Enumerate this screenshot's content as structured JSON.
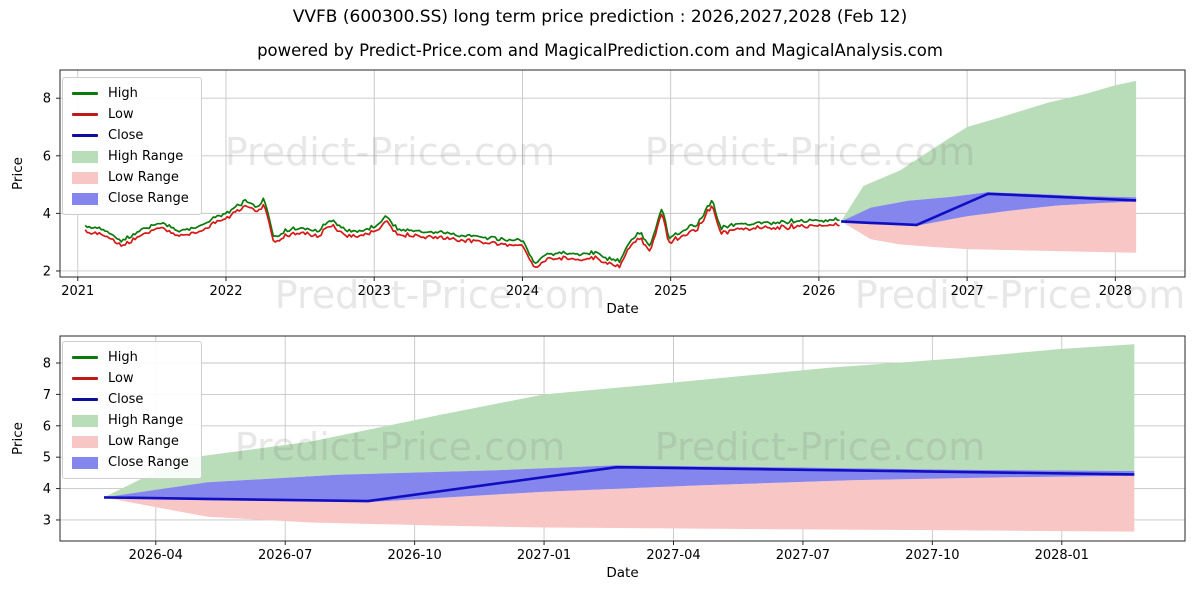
{
  "figure": {
    "title": "VVFB (600300.SS) long term price prediction : 2026,2027,2028 (Feb 12)",
    "subtitle": "powered by Predict-Price.com and MagicalPrediction.com and MagicalAnalysis.com",
    "watermark_text": "Predict-Price.com",
    "background": "#ffffff"
  },
  "colors": {
    "high_line": "#0a7a0a",
    "low_line": "#d81717",
    "close_line": "#0f0fc0",
    "high_range_fill": "#b9dcb9",
    "low_range_fill": "#f9c6c6",
    "close_range_fill": "#8585ee",
    "grid": "#c6c6c6",
    "spine": "#262626",
    "tick_text": "#000000",
    "watermark": "#7d7d7d"
  },
  "legend": {
    "position": "upper left",
    "items": [
      {
        "label": "High",
        "swatch": "line",
        "color": "#0a7a0a"
      },
      {
        "label": "Low",
        "swatch": "line",
        "color": "#c21818"
      },
      {
        "label": "Close",
        "swatch": "line",
        "color": "#0d0d9e"
      },
      {
        "label": "High Range",
        "swatch": "patch",
        "color": "#b9dcb9"
      },
      {
        "label": "Low Range",
        "swatch": "patch",
        "color": "#f9c6c6"
      },
      {
        "label": "Close Range",
        "swatch": "patch",
        "color": "#8585ee"
      }
    ]
  },
  "chart_data": [
    {
      "type": "line",
      "title": "",
      "xlabel": "Date",
      "ylabel": "Price",
      "x_ticks": [
        "2021",
        "2022",
        "2023",
        "2024",
        "2025",
        "2026",
        "2027",
        "2028"
      ],
      "y_ticks": [
        2,
        4,
        6,
        8
      ],
      "xlim_years": [
        2020.88,
        2028.47
      ],
      "ylim": [
        1.79,
        8.98
      ],
      "grid": true,
      "legend_position": "upper left",
      "series": {
        "historical": {
          "close_anchors": [
            [
              2021.05,
              3.45
            ],
            [
              2021.18,
              3.35
            ],
            [
              2021.3,
              2.98
            ],
            [
              2021.42,
              3.3
            ],
            [
              2021.55,
              3.6
            ],
            [
              2021.68,
              3.35
            ],
            [
              2021.8,
              3.38
            ],
            [
              2021.92,
              3.75
            ],
            [
              2022.02,
              4.0
            ],
            [
              2022.13,
              4.35
            ],
            [
              2022.2,
              4.1
            ],
            [
              2022.26,
              4.4
            ],
            [
              2022.32,
              3.1
            ],
            [
              2022.42,
              3.35
            ],
            [
              2022.52,
              3.42
            ],
            [
              2022.62,
              3.28
            ],
            [
              2022.7,
              3.72
            ],
            [
              2022.8,
              3.32
            ],
            [
              2022.9,
              3.28
            ],
            [
              2023.0,
              3.48
            ],
            [
              2023.08,
              3.8
            ],
            [
              2023.16,
              3.38
            ],
            [
              2023.28,
              3.3
            ],
            [
              2023.42,
              3.26
            ],
            [
              2023.56,
              3.18
            ],
            [
              2023.7,
              3.1
            ],
            [
              2023.85,
              3.02
            ],
            [
              2024.0,
              3.0
            ],
            [
              2024.08,
              2.15
            ],
            [
              2024.16,
              2.5
            ],
            [
              2024.28,
              2.55
            ],
            [
              2024.4,
              2.48
            ],
            [
              2024.5,
              2.58
            ],
            [
              2024.58,
              2.3
            ],
            [
              2024.66,
              2.25
            ],
            [
              2024.72,
              2.9
            ],
            [
              2024.79,
              3.28
            ],
            [
              2024.86,
              2.75
            ],
            [
              2024.94,
              4.1
            ],
            [
              2024.99,
              3.05
            ],
            [
              2025.08,
              3.35
            ],
            [
              2025.18,
              3.55
            ],
            [
              2025.28,
              4.4
            ],
            [
              2025.34,
              3.4
            ],
            [
              2025.45,
              3.55
            ],
            [
              2025.58,
              3.58
            ],
            [
              2025.7,
              3.6
            ],
            [
              2025.82,
              3.65
            ],
            [
              2025.94,
              3.68
            ],
            [
              2026.06,
              3.7
            ],
            [
              2026.14,
              3.72
            ]
          ],
          "high_offset": 0.06,
          "low_offset": -0.06
        },
        "prediction": {
          "close_line": [
            [
              2026.15,
              3.72
            ],
            [
              2026.35,
              3.67
            ],
            [
              2026.66,
              3.6
            ],
            [
              2027.14,
              4.68
            ],
            [
              2027.45,
              4.61
            ],
            [
              2027.75,
              4.54
            ],
            [
              2028.14,
              4.45
            ]
          ],
          "close_range_upper": [
            [
              2026.15,
              3.72
            ],
            [
              2026.35,
              4.2
            ],
            [
              2026.6,
              4.44
            ],
            [
              2026.9,
              4.58
            ],
            [
              2027.14,
              4.74
            ],
            [
              2027.5,
              4.67
            ],
            [
              2027.8,
              4.6
            ],
            [
              2028.14,
              4.56
            ]
          ],
          "close_range_lower": [
            [
              2026.15,
              3.72
            ],
            [
              2026.35,
              3.63
            ],
            [
              2026.66,
              3.57
            ],
            [
              2027.0,
              3.9
            ],
            [
              2027.3,
              4.1
            ],
            [
              2027.6,
              4.27
            ],
            [
              2027.9,
              4.36
            ],
            [
              2028.14,
              4.41
            ]
          ],
          "high_range_upper": [
            [
              2026.15,
              3.72
            ],
            [
              2026.3,
              4.95
            ],
            [
              2026.55,
              5.5
            ],
            [
              2026.8,
              6.35
            ],
            [
              2027.0,
              7.0
            ],
            [
              2027.2,
              7.3
            ],
            [
              2027.55,
              7.85
            ],
            [
              2027.8,
              8.15
            ],
            [
              2028.0,
              8.45
            ],
            [
              2028.14,
              8.6
            ]
          ],
          "low_range_lower": [
            [
              2026.15,
              3.72
            ],
            [
              2026.35,
              3.1
            ],
            [
              2026.55,
              2.92
            ],
            [
              2026.8,
              2.82
            ],
            [
              2027.0,
              2.76
            ],
            [
              2027.5,
              2.7
            ],
            [
              2027.8,
              2.67
            ],
            [
              2028.14,
              2.63
            ]
          ]
        }
      }
    },
    {
      "type": "area",
      "title": "",
      "xlabel": "Date",
      "ylabel": "Price",
      "x_ticks": [
        "2026-04",
        "2026-07",
        "2026-10",
        "2027-01",
        "2027-04",
        "2027-07",
        "2027-10",
        "2028-01"
      ],
      "y_ticks": [
        3,
        4,
        5,
        6,
        7,
        8
      ],
      "xlim_years": [
        2026.065,
        2028.238
      ],
      "ylim": [
        2.33,
        8.86
      ],
      "grid": true,
      "legend_position": "upper left",
      "series": {
        "prediction": {
          "close_line": [
            [
              2026.15,
              3.72
            ],
            [
              2026.35,
              3.67
            ],
            [
              2026.66,
              3.6
            ],
            [
              2027.14,
              4.68
            ],
            [
              2027.45,
              4.61
            ],
            [
              2027.75,
              4.54
            ],
            [
              2028.14,
              4.45
            ]
          ],
          "close_range_upper": [
            [
              2026.15,
              3.72
            ],
            [
              2026.35,
              4.2
            ],
            [
              2026.6,
              4.44
            ],
            [
              2026.9,
              4.58
            ],
            [
              2027.14,
              4.74
            ],
            [
              2027.5,
              4.67
            ],
            [
              2027.8,
              4.6
            ],
            [
              2028.14,
              4.56
            ]
          ],
          "close_range_lower": [
            [
              2026.15,
              3.72
            ],
            [
              2026.35,
              3.63
            ],
            [
              2026.66,
              3.57
            ],
            [
              2027.0,
              3.9
            ],
            [
              2027.3,
              4.1
            ],
            [
              2027.6,
              4.27
            ],
            [
              2027.9,
              4.36
            ],
            [
              2028.14,
              4.41
            ]
          ],
          "high_range_upper": [
            [
              2026.15,
              3.72
            ],
            [
              2026.3,
              4.95
            ],
            [
              2026.55,
              5.5
            ],
            [
              2026.8,
              6.35
            ],
            [
              2027.0,
              7.0
            ],
            [
              2027.2,
              7.3
            ],
            [
              2027.55,
              7.85
            ],
            [
              2027.8,
              8.15
            ],
            [
              2028.0,
              8.45
            ],
            [
              2028.14,
              8.6
            ]
          ],
          "low_range_lower": [
            [
              2026.15,
              3.72
            ],
            [
              2026.35,
              3.1
            ],
            [
              2026.55,
              2.92
            ],
            [
              2026.8,
              2.82
            ],
            [
              2027.0,
              2.76
            ],
            [
              2027.5,
              2.7
            ],
            [
              2027.8,
              2.67
            ],
            [
              2028.14,
              2.63
            ]
          ]
        }
      }
    }
  ]
}
